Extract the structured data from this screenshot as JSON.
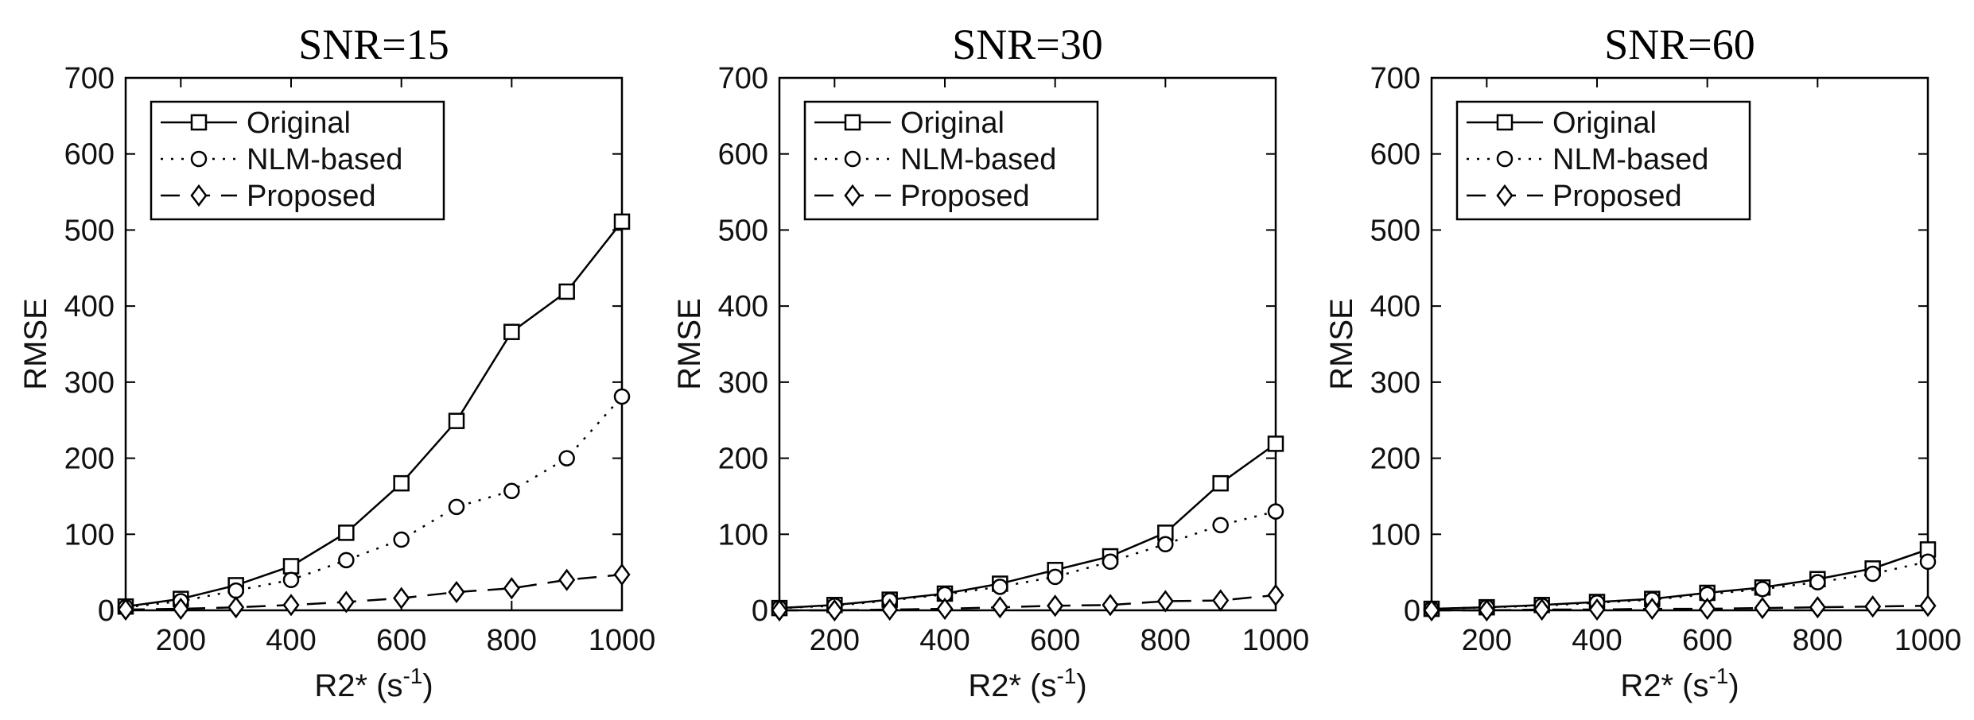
{
  "chart_data": [
    {
      "type": "line",
      "title": "SNR=15",
      "xlabel": "R2* (s",
      "xlabel_sup": "-1",
      "xlabel_end": ")",
      "ylabel": "RMSE",
      "xlim": [
        100,
        1000
      ],
      "ylim": [
        0,
        700
      ],
      "xticks": [
        200,
        400,
        600,
        800,
        1000
      ],
      "yticks": [
        0,
        100,
        200,
        300,
        400,
        500,
        600,
        700
      ],
      "x": [
        100,
        200,
        300,
        400,
        500,
        600,
        700,
        800,
        900,
        1000
      ],
      "grid": false,
      "legend_position": "top-left",
      "series": [
        {
          "name": "Original",
          "marker": "square",
          "line": "solid",
          "values": [
            5,
            15,
            33,
            58,
            102,
            167,
            249,
            366,
            419,
            511
          ]
        },
        {
          "name": "NLM-based",
          "marker": "circle",
          "line": "dotted",
          "values": [
            4,
            12,
            26,
            40,
            66,
            93,
            136,
            157,
            200,
            281
          ]
        },
        {
          "name": "Proposed",
          "marker": "diamond",
          "line": "dashed",
          "values": [
            1,
            2,
            4,
            7,
            11,
            16,
            24,
            29,
            40,
            47
          ]
        }
      ]
    },
    {
      "type": "line",
      "title": "SNR=30",
      "xlabel": "R2* (s",
      "xlabel_sup": "-1",
      "xlabel_end": ")",
      "ylabel": "RMSE",
      "xlim": [
        100,
        1000
      ],
      "ylim": [
        0,
        700
      ],
      "xticks": [
        200,
        400,
        600,
        800,
        1000
      ],
      "yticks": [
        0,
        100,
        200,
        300,
        400,
        500,
        600,
        700
      ],
      "x": [
        100,
        200,
        300,
        400,
        500,
        600,
        700,
        800,
        900,
        1000
      ],
      "grid": false,
      "legend_position": "top-left",
      "series": [
        {
          "name": "Original",
          "marker": "square",
          "line": "solid",
          "values": [
            3,
            7,
            14,
            22,
            35,
            53,
            71,
            102,
            167,
            219
          ]
        },
        {
          "name": "NLM-based",
          "marker": "circle",
          "line": "dotted",
          "values": [
            3,
            6,
            13,
            21,
            31,
            44,
            64,
            87,
            112,
            130
          ]
        },
        {
          "name": "Proposed",
          "marker": "diamond",
          "line": "dashed",
          "values": [
            0,
            0,
            1,
            2,
            4,
            6,
            7,
            12,
            13,
            20
          ]
        }
      ]
    },
    {
      "type": "line",
      "title": "SNR=60",
      "xlabel": "R2* (s",
      "xlabel_sup": "-1",
      "xlabel_end": ")",
      "ylabel": "RMSE",
      "xlim": [
        100,
        1000
      ],
      "ylim": [
        0,
        700
      ],
      "xticks": [
        200,
        400,
        600,
        800,
        1000
      ],
      "yticks": [
        0,
        100,
        200,
        300,
        400,
        500,
        600,
        700
      ],
      "x": [
        100,
        200,
        300,
        400,
        500,
        600,
        700,
        800,
        900,
        1000
      ],
      "grid": false,
      "legend_position": "top-left",
      "series": [
        {
          "name": "Original",
          "marker": "square",
          "line": "solid",
          "values": [
            2,
            4,
            7,
            11,
            15,
            23,
            30,
            41,
            55,
            80
          ]
        },
        {
          "name": "NLM-based",
          "marker": "circle",
          "line": "dotted",
          "values": [
            2,
            4,
            6,
            10,
            14,
            21,
            28,
            37,
            48,
            64
          ]
        },
        {
          "name": "Proposed",
          "marker": "diamond",
          "line": "dashed",
          "values": [
            0,
            0,
            1,
            1,
            2,
            2,
            3,
            4,
            5,
            6
          ]
        }
      ]
    }
  ]
}
